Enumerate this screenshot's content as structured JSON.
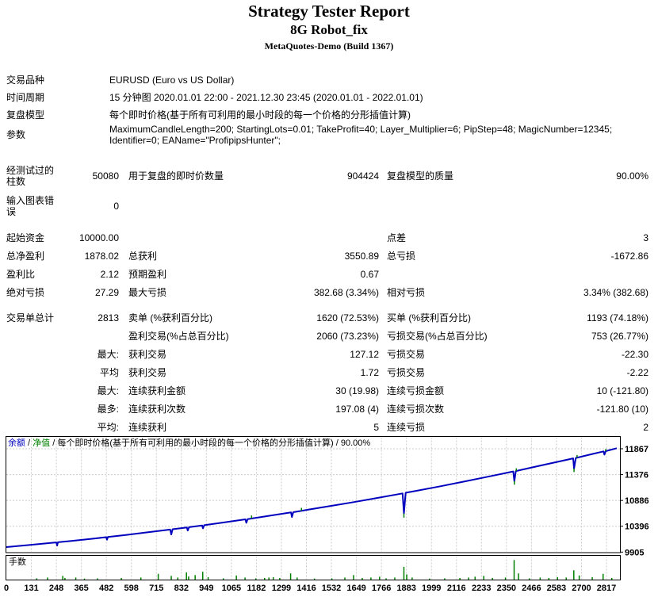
{
  "header": {
    "title": "Strategy Tester Report",
    "subtitle": "8G Robot_fix",
    "server": "MetaQuotes-Demo (Build 1367)"
  },
  "info_rows": [
    {
      "label": "交易品种",
      "value": "EURUSD (Euro vs US Dollar)"
    },
    {
      "label": "时间周期",
      "value": "15 分钟图 2020.01.01 22:00 - 2021.12.30 23:45 (2020.01.01 - 2022.01.01)"
    },
    {
      "label": "复盘模型",
      "value": "每个即时价格(基于所有可利用的最小时段的每一个价格的分形插值计算)"
    },
    {
      "label": "参数",
      "value": "MaximumCandleLength=200; StartingLots=0.01; TakeProfit=40; Layer_Multiplier=6; PipStep=48; MagicNumber=12345; Identifier=0; EAName=\"ProfipipsHunter\";"
    }
  ],
  "stat_sections": [
    {
      "tall": true,
      "rows": [
        {
          "c": [
            "经测试过的柱数",
            "50080",
            "用于复盘的即时价数量",
            "904424",
            "复盘模型的质量",
            "90.00%"
          ]
        },
        {
          "c": [
            "输入图表错误",
            "0",
            "",
            "",
            "",
            ""
          ]
        }
      ]
    },
    {
      "tall": false,
      "rows": [
        {
          "c": [
            "起始资金",
            "10000.00",
            "",
            "",
            "点差",
            "3"
          ]
        },
        {
          "c": [
            "总净盈利",
            "1878.02",
            "总获利",
            "3550.89",
            "总亏损",
            "-1672.86"
          ]
        },
        {
          "c": [
            "盈利比",
            "2.12",
            "预期盈利",
            "0.67",
            "",
            ""
          ]
        },
        {
          "c": [
            "绝对亏损",
            "27.29",
            "最大亏损",
            "382.68 (3.34%)",
            "相对亏损",
            "3.34% (382.68)"
          ]
        }
      ]
    },
    {
      "tall": false,
      "rows": [
        {
          "c": [
            "交易单总计",
            "2813",
            "卖单 (%获利百分比)",
            "1620 (72.53%)",
            "买单 (%获利百分比)",
            "1193 (74.18%)"
          ]
        },
        {
          "c": [
            "",
            "",
            "盈利交易(%占总百分比)",
            "2060 (73.23%)",
            "亏损交易(%占总百分比)",
            "753 (26.77%)"
          ]
        },
        {
          "c": [
            "",
            "最大:",
            "获利交易",
            "127.12",
            "亏损交易",
            "-22.30"
          ]
        },
        {
          "c": [
            "",
            "平均",
            "获利交易",
            "1.72",
            "亏损交易",
            "-2.22"
          ]
        },
        {
          "c": [
            "",
            "最大:",
            "连续获利金额",
            "30 (19.98)",
            "连续亏损金额",
            "10 (-121.80)"
          ]
        },
        {
          "c": [
            "",
            "最多:",
            "连续获利次数",
            "197.08 (4)",
            "连续亏损次数",
            "-121.80 (10)"
          ]
        },
        {
          "c": [
            "",
            "平均:",
            "连续获利",
            "5",
            "连续亏损",
            "2"
          ]
        }
      ]
    }
  ],
  "chart_data": {
    "type": "line",
    "legend": {
      "balance_label": "余额",
      "equity_label": "净值",
      "model_label": "每个即时价格(基于所有可利用的最小时段的每一个价格的分形插值计算)",
      "quality_label": "90.00%",
      "separator": " / "
    },
    "y_ticks": [
      11867,
      11376,
      10886,
      10396,
      9905
    ],
    "x_ticks": [
      0,
      131,
      248,
      365,
      482,
      598,
      715,
      832,
      949,
      1065,
      1182,
      1299,
      1416,
      1532,
      1649,
      1766,
      1883,
      1999,
      2116,
      2233,
      2350,
      2466,
      2583,
      2700,
      2817
    ],
    "x_max_trade": 2813,
    "colors": {
      "balance": "#0202BE",
      "equity": "#008000",
      "lots": "#008000",
      "grid": "#CBCBCB",
      "frame": "#000000"
    },
    "balance_points": [
      [
        0,
        10000
      ],
      [
        100,
        10037
      ],
      [
        200,
        10076
      ],
      [
        230,
        10088
      ],
      [
        234,
        10030
      ],
      [
        238,
        10092
      ],
      [
        300,
        10117
      ],
      [
        400,
        10160
      ],
      [
        460,
        10188
      ],
      [
        464,
        10140
      ],
      [
        468,
        10192
      ],
      [
        550,
        10230
      ],
      [
        650,
        10280
      ],
      [
        755,
        10332
      ],
      [
        760,
        10240
      ],
      [
        766,
        10338
      ],
      [
        832,
        10373
      ],
      [
        836,
        10315
      ],
      [
        842,
        10378
      ],
      [
        902,
        10411
      ],
      [
        906,
        10355
      ],
      [
        912,
        10416
      ],
      [
        1000,
        10467
      ],
      [
        1102,
        10527
      ],
      [
        1106,
        10460
      ],
      [
        1112,
        10532
      ],
      [
        1200,
        10587
      ],
      [
        1312,
        10658
      ],
      [
        1316,
        10570
      ],
      [
        1322,
        10663
      ],
      [
        1400,
        10716
      ],
      [
        1500,
        10784
      ],
      [
        1600,
        10853
      ],
      [
        1700,
        10926
      ],
      [
        1826,
        11020
      ],
      [
        1832,
        10638
      ],
      [
        1840,
        11032
      ],
      [
        1900,
        11077
      ],
      [
        2000,
        11155
      ],
      [
        2100,
        11236
      ],
      [
        2200,
        11320
      ],
      [
        2336,
        11436
      ],
      [
        2341,
        11250
      ],
      [
        2348,
        11444
      ],
      [
        2450,
        11537
      ],
      [
        2550,
        11628
      ],
      [
        2612,
        11685
      ],
      [
        2616,
        11490
      ],
      [
        2624,
        11692
      ],
      [
        2700,
        11768
      ],
      [
        2752,
        11817
      ],
      [
        2756,
        11755
      ],
      [
        2762,
        11822
      ],
      [
        2813,
        11878
      ]
    ],
    "equity_spikes": [
      [
        1130,
        10545,
        10600
      ],
      [
        1360,
        10690,
        10745
      ],
      [
        1832,
        10638,
        10560
      ],
      [
        2341,
        11250,
        11185
      ],
      [
        2350,
        11444,
        11495
      ],
      [
        2616,
        11490,
        11425
      ],
      [
        2630,
        11700,
        11748
      ],
      [
        2762,
        11822,
        11862
      ]
    ],
    "lots": {
      "label": "手数",
      "bars": [
        [
          140,
          0.06
        ],
        [
          190,
          0.1
        ],
        [
          260,
          0.18
        ],
        [
          270,
          0.08
        ],
        [
          320,
          0.1
        ],
        [
          360,
          0.05
        ],
        [
          420,
          0.06
        ],
        [
          530,
          0.08
        ],
        [
          620,
          0.1
        ],
        [
          700,
          0.28
        ],
        [
          760,
          0.18
        ],
        [
          790,
          0.1
        ],
        [
          830,
          0.35
        ],
        [
          840,
          0.15
        ],
        [
          870,
          0.22
        ],
        [
          905,
          0.38
        ],
        [
          930,
          0.12
        ],
        [
          1000,
          0.06
        ],
        [
          1060,
          0.2
        ],
        [
          1100,
          0.1
        ],
        [
          1150,
          0.06
        ],
        [
          1190,
          0.08
        ],
        [
          1210,
          0.1
        ],
        [
          1230,
          0.12
        ],
        [
          1260,
          0.08
        ],
        [
          1310,
          0.3
        ],
        [
          1340,
          0.1
        ],
        [
          1420,
          0.05
        ],
        [
          1500,
          0.06
        ],
        [
          1560,
          0.1
        ],
        [
          1600,
          0.22
        ],
        [
          1640,
          0.08
        ],
        [
          1680,
          0.1
        ],
        [
          1720,
          0.14
        ],
        [
          1750,
          0.06
        ],
        [
          1790,
          0.1
        ],
        [
          1832,
          0.62
        ],
        [
          1845,
          0.25
        ],
        [
          1870,
          0.1
        ],
        [
          1950,
          0.05
        ],
        [
          2020,
          0.06
        ],
        [
          2090,
          0.08
        ],
        [
          2130,
          0.1
        ],
        [
          2160,
          0.14
        ],
        [
          2200,
          0.18
        ],
        [
          2240,
          0.08
        ],
        [
          2300,
          0.1
        ],
        [
          2340,
          0.95
        ],
        [
          2360,
          0.3
        ],
        [
          2410,
          0.06
        ],
        [
          2460,
          0.1
        ],
        [
          2500,
          0.08
        ],
        [
          2540,
          0.12
        ],
        [
          2580,
          0.1
        ],
        [
          2615,
          0.45
        ],
        [
          2640,
          0.2
        ],
        [
          2700,
          0.12
        ],
        [
          2750,
          0.28
        ],
        [
          2790,
          0.08
        ]
      ]
    }
  }
}
